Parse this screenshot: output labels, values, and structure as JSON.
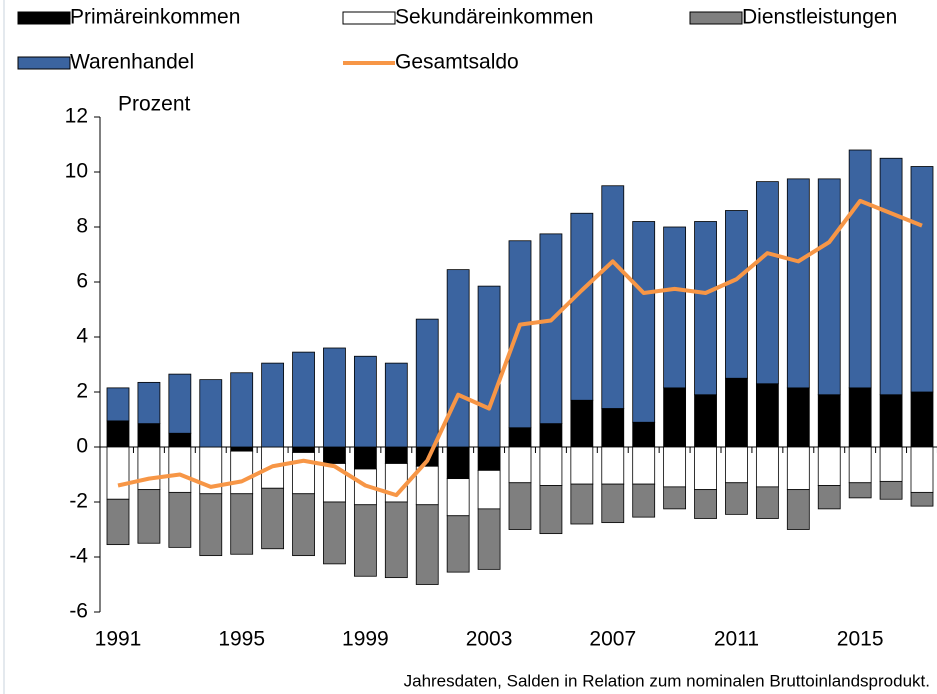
{
  "chart_data": {
    "type": "bar",
    "stacked": true,
    "y_label": "Prozent",
    "footnote": "Jahresdaten, Salden in Relation zum nominalen Bruttoinlandsprodukt.",
    "categories": [
      "1991",
      null,
      null,
      null,
      "1995",
      null,
      null,
      null,
      "1999",
      null,
      null,
      null,
      "2003",
      null,
      null,
      null,
      "2007",
      null,
      null,
      null,
      "2011",
      null,
      null,
      null,
      "2015",
      null,
      null
    ],
    "series": [
      {
        "name": "Primäreinkommen",
        "color": "#000000",
        "values": [
          0.95,
          0.85,
          0.5,
          0,
          -0.15,
          0,
          -0.2,
          -0.6,
          -0.8,
          -0.6,
          -0.7,
          -1.15,
          -0.85,
          0.7,
          0.85,
          1.7,
          1.4,
          0.9,
          2.15,
          1.9,
          2.5,
          2.3,
          2.15,
          1.9,
          2.15,
          1.9,
          2.0
        ]
      },
      {
        "name": "Sekundäreinkommen",
        "color": "#ffffff",
        "values": [
          -1.9,
          -1.55,
          -1.65,
          -1.7,
          -1.55,
          -1.5,
          -1.5,
          -1.4,
          -1.3,
          -1.4,
          -1.4,
          -1.35,
          -1.4,
          -1.3,
          -1.4,
          -1.35,
          -1.35,
          -1.35,
          -1.45,
          -1.55,
          -1.3,
          -1.45,
          -1.55,
          -1.4,
          -1.3,
          -1.25,
          -1.65
        ]
      },
      {
        "name": "Dienstleistungen",
        "color": "#7f7f7f",
        "values": [
          -1.65,
          -1.95,
          -2.0,
          -2.25,
          -2.2,
          -2.2,
          -2.25,
          -2.25,
          -2.6,
          -2.75,
          -2.9,
          -2.05,
          -2.2,
          -1.7,
          -1.75,
          -1.45,
          -1.4,
          -1.2,
          -0.8,
          -1.05,
          -1.15,
          -1.15,
          -1.45,
          -0.85,
          -0.55,
          -0.65,
          -0.5
        ]
      },
      {
        "name": "Warenhandel",
        "color": "#3b64a0",
        "values": [
          1.2,
          1.5,
          2.15,
          2.45,
          2.7,
          3.05,
          3.45,
          3.6,
          3.3,
          3.05,
          4.65,
          6.45,
          5.85,
          6.8,
          6.9,
          6.8,
          8.1,
          7.3,
          5.85,
          6.3,
          6.1,
          7.35,
          7.6,
          7.85,
          8.65,
          8.6,
          8.2
        ]
      },
      {
        "name": "Gesamtsaldo",
        "type": "line",
        "color": "#f79646",
        "values": [
          -1.4,
          -1.15,
          -1.0,
          -1.45,
          -1.25,
          -0.7,
          -0.5,
          -0.7,
          -1.4,
          -1.75,
          -0.5,
          1.9,
          1.4,
          4.45,
          4.6,
          5.7,
          6.75,
          5.6,
          5.75,
          5.6,
          6.1,
          7.05,
          6.75,
          7.45,
          8.95,
          8.5,
          8.05
        ]
      }
    ],
    "ylim": [
      -6,
      12
    ],
    "yticks": [
      -6,
      -4,
      -2,
      0,
      2,
      4,
      6,
      8,
      10,
      12
    ]
  }
}
